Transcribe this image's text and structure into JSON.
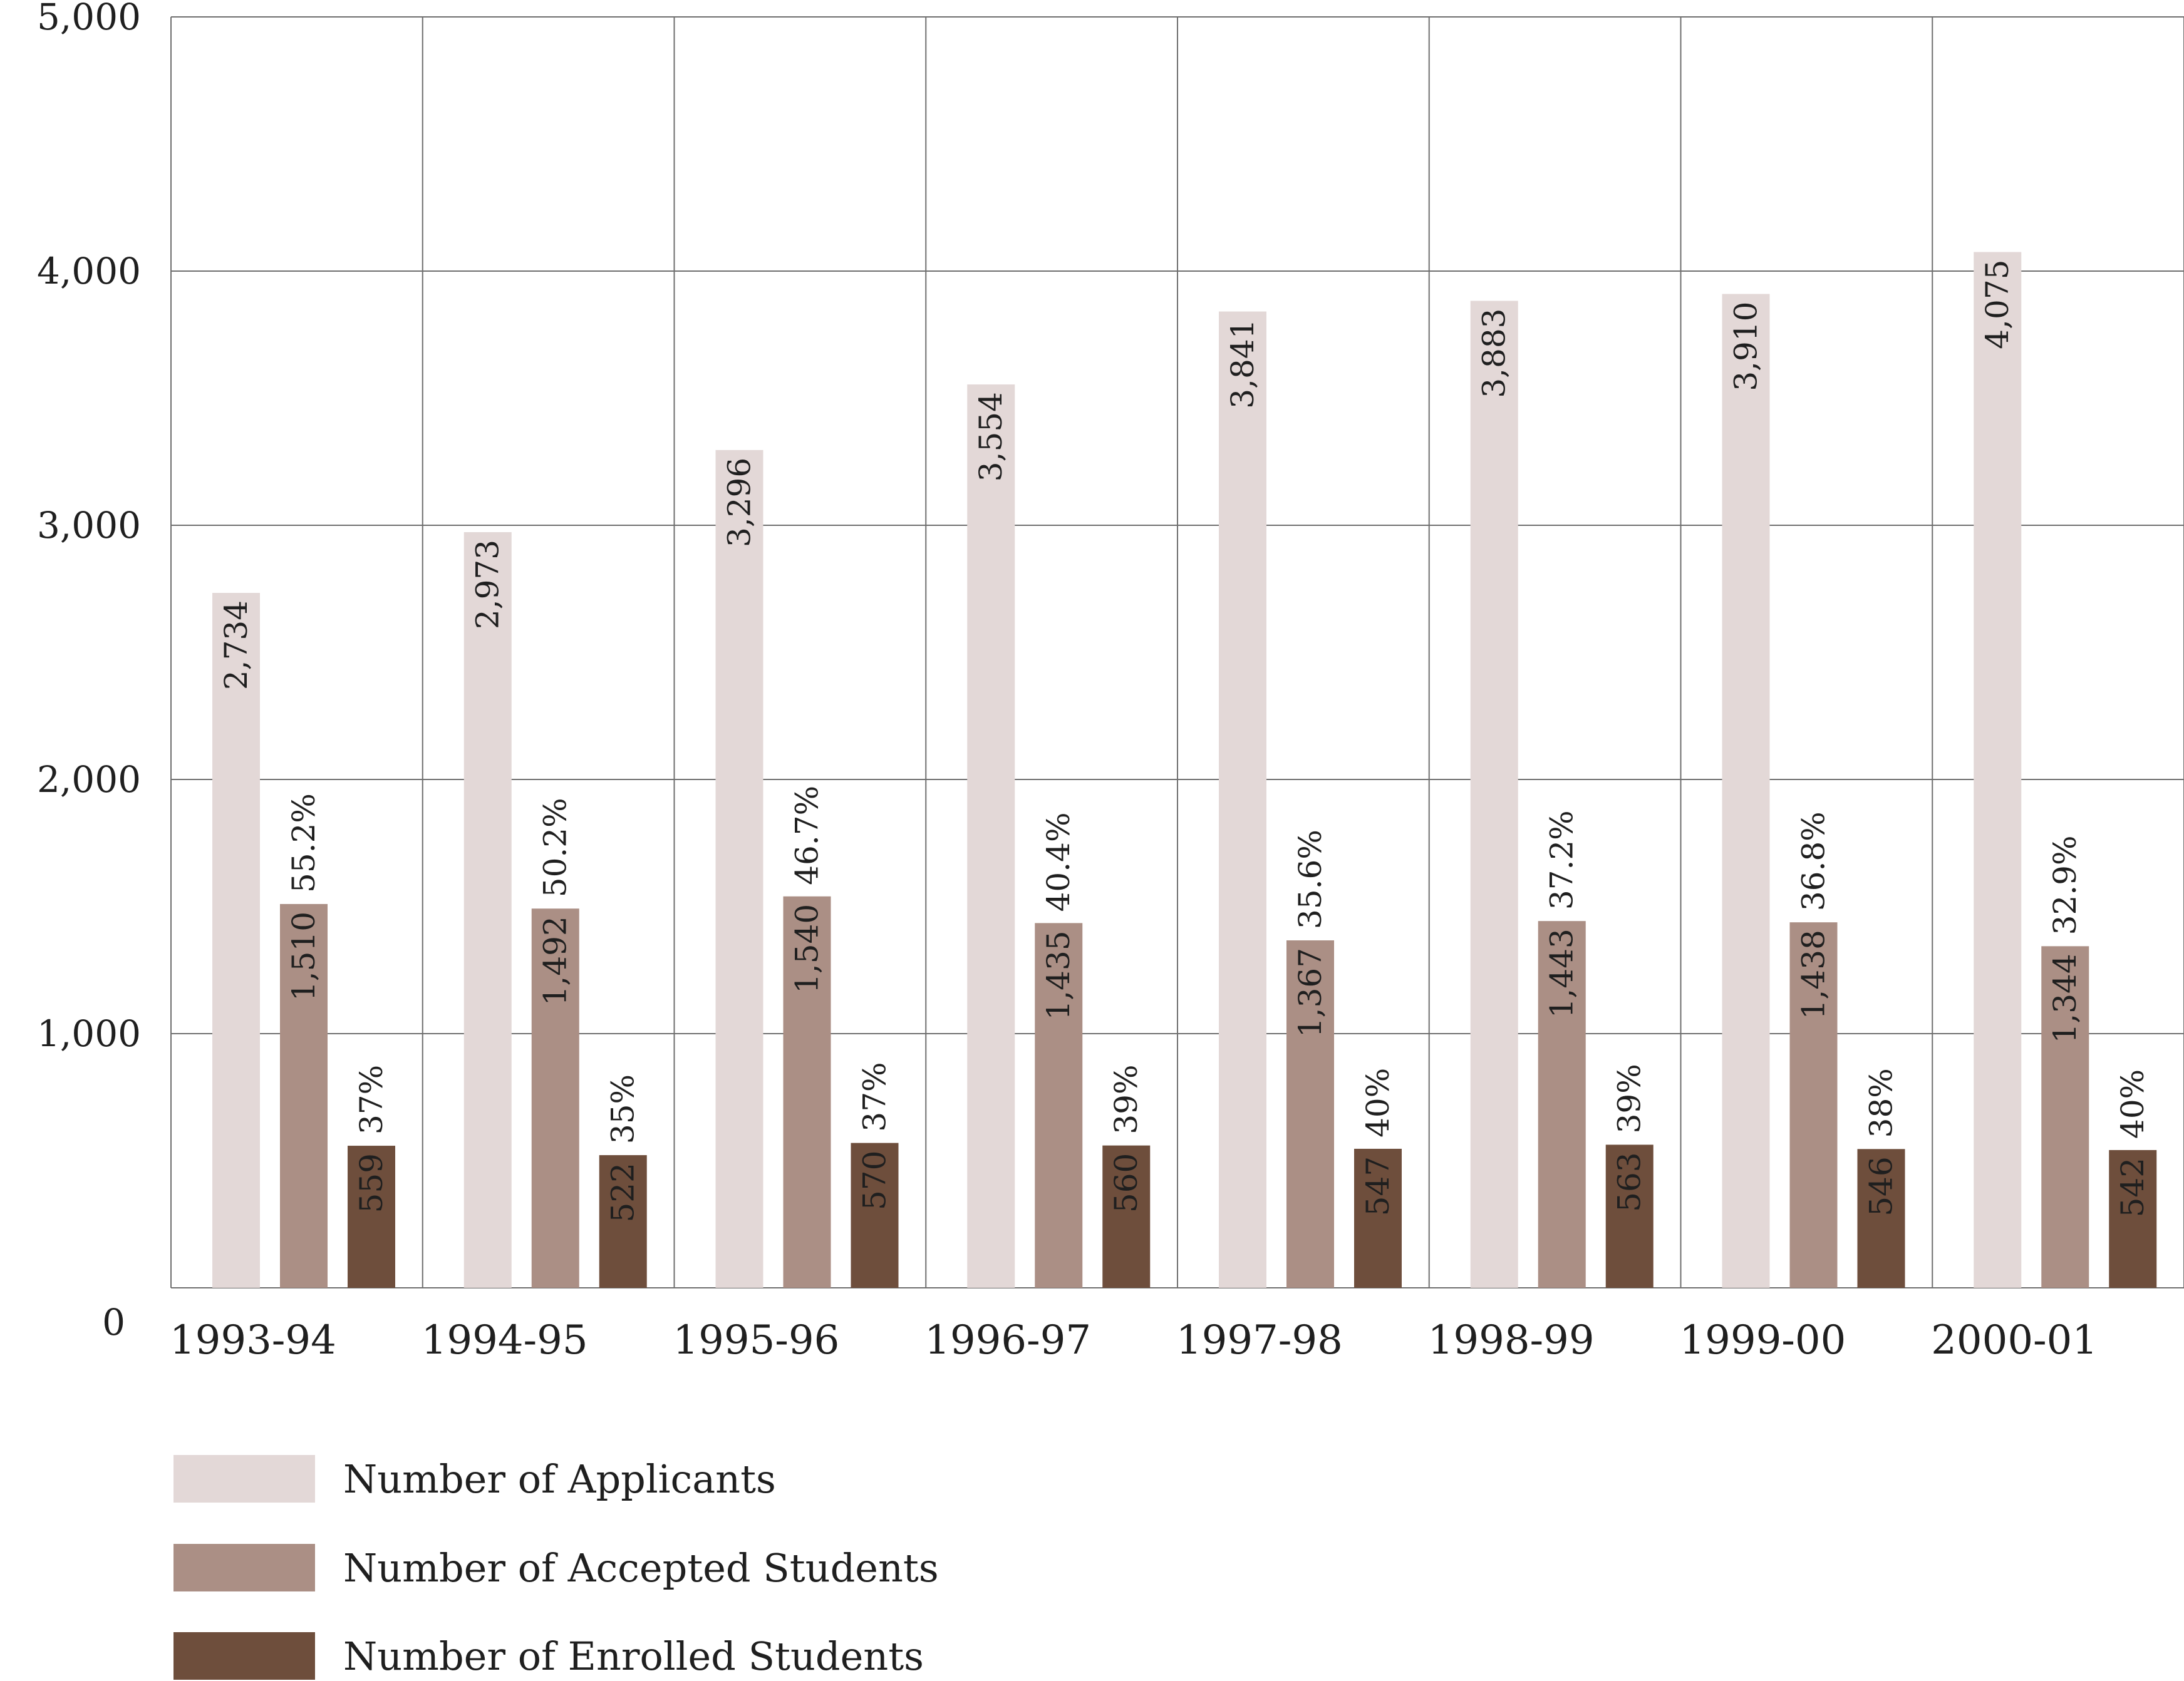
{
  "chart_data": {
    "type": "bar",
    "categories": [
      "1993-94",
      "1994-95",
      "1995-96",
      "1996-97",
      "1997-98",
      "1998-99",
      "1999-00",
      "2000-01"
    ],
    "series": [
      {
        "name": "Number of Applicants",
        "values": [
          2734,
          2973,
          3296,
          3554,
          3841,
          3883,
          3910,
          4075
        ],
        "value_labels": [
          "2,734",
          "2,973",
          "3,296",
          "3,554",
          "3,841",
          "3,883",
          "3,910",
          "4,075"
        ],
        "color": "#e3d8d7"
      },
      {
        "name": "Number of Accepted Students",
        "values": [
          1510,
          1492,
          1540,
          1435,
          1367,
          1443,
          1438,
          1344
        ],
        "value_labels": [
          "1,510",
          "1,492",
          "1,540",
          "1,435",
          "1,367",
          "1,443",
          "1,438",
          "1,344"
        ],
        "percent_labels": [
          "55.2%",
          "50.2%",
          "46.7%",
          "40.4%",
          "35.6%",
          "37.2%",
          "36.8%",
          "32.9%"
        ],
        "color": "#ab8f85"
      },
      {
        "name": "Number of Enrolled Students",
        "values": [
          559,
          522,
          570,
          560,
          547,
          563,
          546,
          542
        ],
        "value_labels": [
          "559",
          "522",
          "570",
          "560",
          "547",
          "563",
          "546",
          "542"
        ],
        "percent_labels": [
          "37%",
          "35%",
          "37%",
          "39%",
          "40%",
          "39%",
          "38%",
          "40%"
        ],
        "color": "#6e4e3c"
      }
    ],
    "ylim": [
      0,
      5000
    ],
    "y_ticks": [
      0,
      1000,
      2000,
      3000,
      4000,
      5000
    ],
    "y_tick_labels": [
      "0",
      "1,000",
      "2,000",
      "3,000",
      "4,000",
      "5,000"
    ],
    "grid": true,
    "legend_position": "bottom-left"
  }
}
